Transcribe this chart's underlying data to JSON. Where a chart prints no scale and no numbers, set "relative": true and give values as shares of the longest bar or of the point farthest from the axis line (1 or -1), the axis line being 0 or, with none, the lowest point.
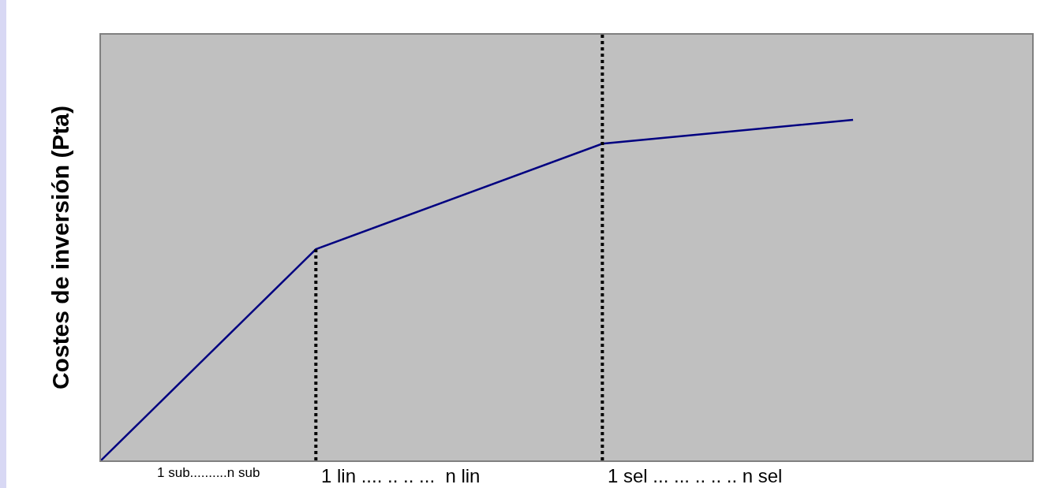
{
  "chart_data": {
    "type": "line",
    "ylabel": "Costes de inversión (Pta)",
    "relative": true,
    "categories": [
      null,
      null,
      null,
      null,
      null,
      null,
      null,
      null,
      null,
      null,
      null,
      null,
      null,
      null,
      null,
      null,
      null,
      null,
      null,
      null,
      null,
      null,
      null,
      null,
      null,
      null,
      null
    ],
    "series": [
      {
        "color": "#000080",
        "values": [
          0,
          null,
          null,
          null,
          null,
          null,
          0.62,
          null,
          null,
          null,
          null,
          null,
          null,
          null,
          0.93,
          null,
          null,
          null,
          null,
          null,
          null,
          1,
          null,
          null,
          null,
          null,
          null
        ]
      }
    ],
    "annotations": [
      "1 sub..........n sub",
      "1 lin .... .. .. ...  n lin",
      "1 sel ... ... .. .. .. n sel"
    ],
    "marker": "none",
    "line_style": "solid"
  }
}
